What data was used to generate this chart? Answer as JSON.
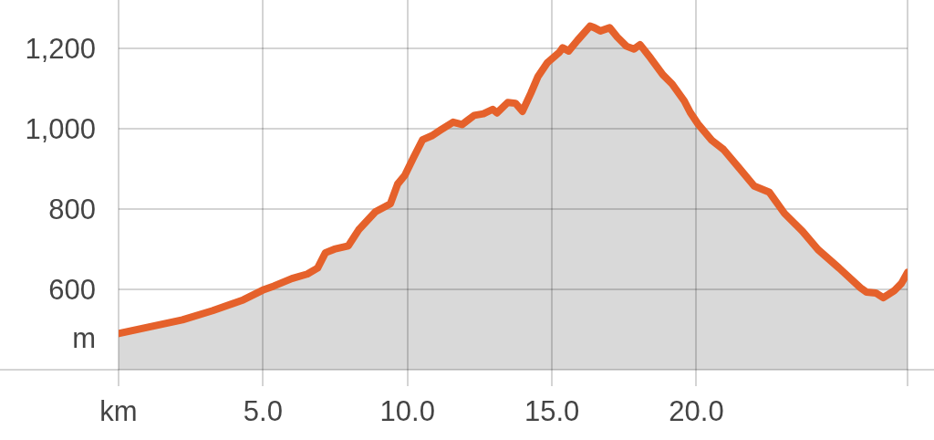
{
  "chart_data": {
    "type": "area",
    "x": [
      0,
      2.21,
      3.26,
      4.32,
      4.99,
      5.37,
      6.0,
      6.53,
      6.89,
      7.16,
      7.47,
      7.95,
      8.31,
      8.89,
      9.41,
      9.66,
      9.91,
      10.21,
      10.52,
      10.84,
      11.16,
      11.58,
      11.89,
      12.31,
      12.63,
      12.95,
      13.1,
      13.47,
      13.74,
      13.98,
      14.27,
      14.52,
      14.84,
      15.26,
      15.37,
      15.58,
      15.89,
      16.32,
      16.47,
      16.68,
      17.0,
      17.26,
      17.58,
      17.84,
      18.05,
      18.42,
      18.84,
      19.16,
      19.58,
      19.79,
      20.05,
      20.53,
      20.94,
      21.47,
      22.0,
      22.52,
      23.05,
      23.68,
      24.21,
      24.94,
      25.68,
      25.89,
      26.21,
      26.47,
      26.84,
      27.1,
      27.31
    ],
    "series": [
      {
        "color": "#e5612b",
        "values": [
          490,
          524,
          547,
          574,
          598,
          608,
          627,
          638,
          653,
          691,
          700,
          708,
          748,
          793,
          813,
          862,
          884,
          928,
          972,
          982,
          997,
          1016,
          1010,
          1033,
          1037,
          1048,
          1039,
          1065,
          1063,
          1043,
          1088,
          1130,
          1164,
          1190,
          1201,
          1193,
          1220,
          1255,
          1251,
          1243,
          1251,
          1228,
          1205,
          1198,
          1209,
          1175,
          1134,
          1111,
          1069,
          1040,
          1012,
          971,
          948,
          903,
          857,
          842,
          789,
          744,
          699,
          653,
          604,
          593,
          591,
          579,
          596,
          615,
          642
        ]
      }
    ],
    "xlim": [
      0,
      27.31
    ],
    "xticks": [
      {
        "value": 0,
        "label": "km"
      },
      {
        "value": 5,
        "label": "5.0"
      },
      {
        "value": 10,
        "label": "10.0"
      },
      {
        "value": 15,
        "label": "15.0"
      },
      {
        "value": 20,
        "label": "20.0"
      }
    ],
    "ylim": [
      400,
      1320
    ],
    "yticks": [
      600,
      800,
      {
        "value": 1000,
        "label": "1,000"
      },
      {
        "value": 1200,
        "label": "1,200"
      }
    ],
    "ylabel": "m",
    "grid": true
  }
}
